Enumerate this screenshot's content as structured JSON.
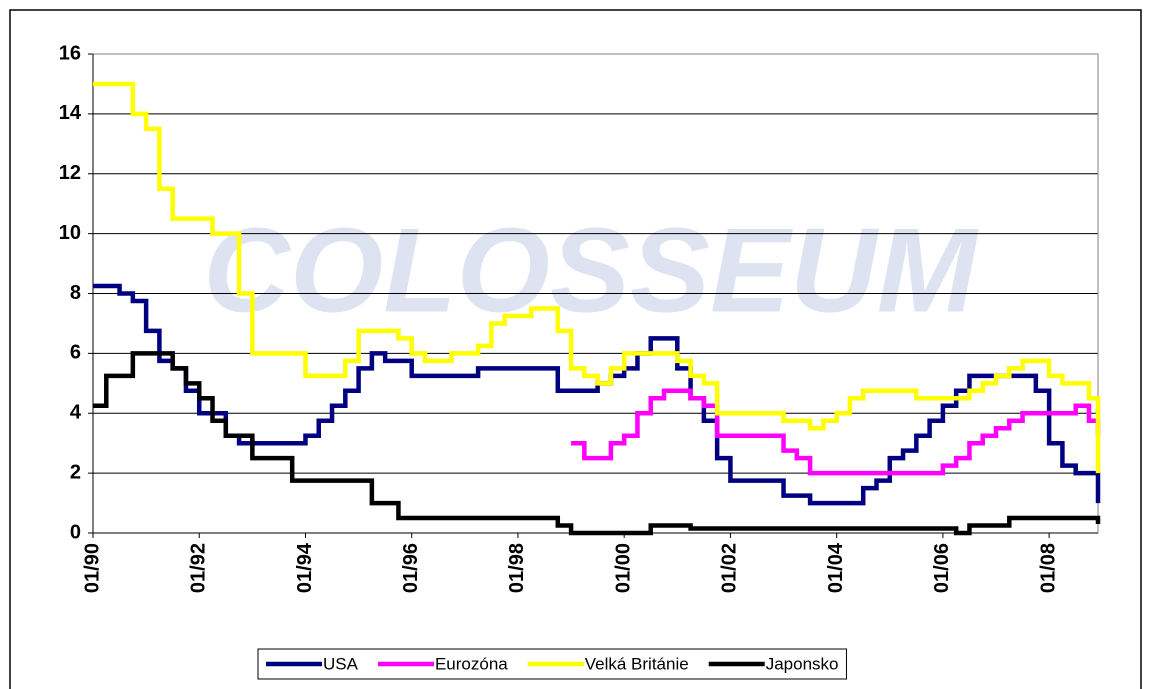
{
  "chart_data": {
    "type": "line",
    "step": true,
    "watermark": "COLOSSEUM",
    "x": [
      1990,
      1990.25,
      1990.5,
      1990.75,
      1991,
      1991.25,
      1991.5,
      1991.75,
      1992,
      1992.25,
      1992.5,
      1992.75,
      1993,
      1993.25,
      1993.5,
      1993.75,
      1994,
      1994.25,
      1994.5,
      1994.75,
      1995,
      1995.25,
      1995.5,
      1995.75,
      1996,
      1996.25,
      1996.5,
      1996.75,
      1997,
      1997.25,
      1997.5,
      1997.75,
      1998,
      1998.25,
      1998.5,
      1998.75,
      1999,
      1999.25,
      1999.5,
      1999.75,
      2000,
      2000.25,
      2000.5,
      2000.75,
      2001,
      2001.25,
      2001.5,
      2001.75,
      2002,
      2002.25,
      2002.5,
      2002.75,
      2003,
      2003.25,
      2003.5,
      2003.75,
      2004,
      2004.25,
      2004.5,
      2004.75,
      2005,
      2005.25,
      2005.5,
      2005.75,
      2006,
      2006.25,
      2006.5,
      2006.75,
      2007,
      2007.25,
      2007.5,
      2007.75,
      2008,
      2008.25,
      2008.5,
      2008.75,
      2008.92
    ],
    "series": [
      {
        "name": "USA",
        "color": "#000080",
        "values": [
          8.25,
          8.25,
          8,
          7.75,
          6.75,
          5.75,
          5.5,
          4.75,
          4,
          4,
          3.25,
          3,
          3,
          3,
          3,
          3,
          3.25,
          3.75,
          4.25,
          4.75,
          5.5,
          6,
          5.75,
          5.75,
          5.25,
          5.25,
          5.25,
          5.25,
          5.25,
          5.5,
          5.5,
          5.5,
          5.5,
          5.5,
          5.5,
          4.75,
          4.75,
          4.75,
          5,
          5.25,
          5.5,
          6,
          6.5,
          6.5,
          5.5,
          4.5,
          3.75,
          2.5,
          1.75,
          1.75,
          1.75,
          1.75,
          1.25,
          1.25,
          1,
          1,
          1,
          1,
          1.5,
          1.75,
          2.5,
          2.75,
          3.25,
          3.75,
          4.25,
          4.75,
          5.25,
          5.25,
          5.25,
          5.25,
          5.25,
          4.75,
          3,
          2.25,
          2,
          2,
          1
        ]
      },
      {
        "name": "Eurozóna",
        "color": "#ff00ff",
        "values": [
          null,
          null,
          null,
          null,
          null,
          null,
          null,
          null,
          null,
          null,
          null,
          null,
          null,
          null,
          null,
          null,
          null,
          null,
          null,
          null,
          null,
          null,
          null,
          null,
          null,
          null,
          null,
          null,
          null,
          null,
          null,
          null,
          null,
          null,
          null,
          null,
          3,
          2.5,
          2.5,
          3,
          3.25,
          4,
          4.5,
          4.75,
          4.75,
          4.5,
          4.25,
          3.25,
          3.25,
          3.25,
          3.25,
          3.25,
          2.75,
          2.5,
          2,
          2,
          2,
          2,
          2,
          2,
          2,
          2,
          2,
          2,
          2.25,
          2.5,
          3,
          3.25,
          3.5,
          3.75,
          4,
          4,
          4,
          4,
          4.25,
          3.75,
          3.25
        ]
      },
      {
        "name": "Velká Británie",
        "color": "#ffff00",
        "values": [
          15,
          15,
          15,
          14,
          13.5,
          11.5,
          10.5,
          10.5,
          10.5,
          10,
          10,
          8,
          6,
          6,
          6,
          6,
          5.25,
          5.25,
          5.25,
          5.75,
          6.75,
          6.75,
          6.75,
          6.5,
          6,
          5.75,
          5.75,
          6,
          6,
          6.25,
          7,
          7.25,
          7.25,
          7.5,
          7.5,
          6.75,
          5.5,
          5.25,
          5,
          5.5,
          6,
          6,
          6,
          6,
          5.75,
          5.25,
          5,
          4,
          4,
          4,
          4,
          4,
          3.75,
          3.75,
          3.5,
          3.75,
          4,
          4.5,
          4.75,
          4.75,
          4.75,
          4.75,
          4.5,
          4.5,
          4.5,
          4.5,
          4.75,
          5,
          5.25,
          5.5,
          5.75,
          5.75,
          5.25,
          5,
          5,
          4.5,
          2
        ]
      },
      {
        "name": "Japonsko",
        "color": "#000000",
        "values": [
          4.25,
          5.25,
          5.25,
          6,
          6,
          6,
          5.5,
          5,
          4.5,
          3.75,
          3.25,
          3.25,
          2.5,
          2.5,
          2.5,
          1.75,
          1.75,
          1.75,
          1.75,
          1.75,
          1.75,
          1,
          1,
          0.5,
          0.5,
          0.5,
          0.5,
          0.5,
          0.5,
          0.5,
          0.5,
          0.5,
          0.5,
          0.5,
          0.5,
          0.25,
          0,
          0,
          0,
          0,
          0,
          0,
          0.25,
          0.25,
          0.25,
          0.15,
          0.15,
          0.15,
          0.15,
          0.15,
          0.15,
          0.15,
          0.15,
          0.15,
          0.15,
          0.15,
          0.15,
          0.15,
          0.15,
          0.15,
          0.15,
          0.15,
          0.15,
          0.15,
          0.15,
          0,
          0.25,
          0.25,
          0.25,
          0.5,
          0.5,
          0.5,
          0.5,
          0.5,
          0.5,
          0.5,
          0.3
        ]
      }
    ],
    "xlim": [
      1990,
      2008.92
    ],
    "xticks": [
      {
        "value": 1990,
        "label": "01/90"
      },
      {
        "value": 1992,
        "label": "01/92"
      },
      {
        "value": 1994,
        "label": "01/94"
      },
      {
        "value": 1996,
        "label": "01/96"
      },
      {
        "value": 1998,
        "label": "01/98"
      },
      {
        "value": 2000,
        "label": "01/00"
      },
      {
        "value": 2002,
        "label": "01/02"
      },
      {
        "value": 2004,
        "label": "01/04"
      },
      {
        "value": 2006,
        "label": "01/06"
      },
      {
        "value": 2008,
        "label": "01/08"
      }
    ],
    "ylim": [
      0,
      16
    ],
    "yticks": [
      0,
      2,
      4,
      6,
      8,
      10,
      12,
      14,
      16
    ],
    "grid": true,
    "legend": "bottom"
  }
}
